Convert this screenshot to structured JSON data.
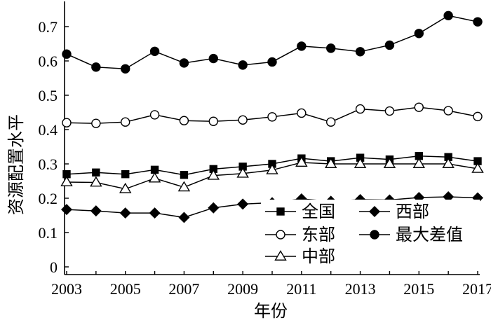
{
  "chart_data": {
    "type": "line",
    "title": "",
    "xlabel": "年份",
    "ylabel": "资源配置水平",
    "xlim": [
      2003,
      2017
    ],
    "ylim": [
      0,
      0.75
    ],
    "x": [
      2003,
      2004,
      2005,
      2006,
      2007,
      2008,
      2009,
      2010,
      2011,
      2012,
      2013,
      2014,
      2015,
      2016,
      2017
    ],
    "x_tick_labels": [
      "2003",
      "2005",
      "2007",
      "2009",
      "2011",
      "2013",
      "2015",
      "2017"
    ],
    "y_tick_labels": [
      "0",
      "0.1",
      "0.2",
      "0.3",
      "0.4",
      "0.5",
      "0.6",
      "0.7"
    ],
    "grid": false,
    "legend_position": "bottom-right",
    "series": [
      {
        "name": "全国",
        "marker": "square",
        "filled": true,
        "values": [
          0.27,
          0.275,
          0.27,
          0.283,
          0.268,
          0.285,
          0.292,
          0.3,
          0.316,
          0.308,
          0.318,
          0.313,
          0.323,
          0.32,
          0.308
        ]
      },
      {
        "name": "东部",
        "marker": "circle",
        "filled": false,
        "values": [
          0.42,
          0.418,
          0.422,
          0.443,
          0.426,
          0.424,
          0.428,
          0.437,
          0.448,
          0.422,
          0.46,
          0.454,
          0.465,
          0.455,
          0.438
        ]
      },
      {
        "name": "中部",
        "marker": "triangle",
        "filled": false,
        "values": [
          0.247,
          0.246,
          0.227,
          0.258,
          0.232,
          0.266,
          0.272,
          0.282,
          0.304,
          0.3,
          0.3,
          0.3,
          0.3,
          0.3,
          0.286
        ]
      },
      {
        "name": "西部",
        "marker": "diamond",
        "filled": true,
        "values": [
          0.167,
          0.163,
          0.157,
          0.157,
          0.144,
          0.172,
          0.183,
          0.187,
          0.198,
          0.191,
          0.196,
          0.195,
          0.202,
          0.204,
          0.201
        ]
      },
      {
        "name": "最大差值",
        "marker": "circle",
        "filled": true,
        "values": [
          0.62,
          0.582,
          0.577,
          0.628,
          0.594,
          0.607,
          0.588,
          0.597,
          0.643,
          0.637,
          0.627,
          0.646,
          0.68,
          0.732,
          0.714
        ]
      }
    ],
    "legend_layout": [
      [
        "全国",
        "西部"
      ],
      [
        "东部",
        "最大差值"
      ],
      [
        "中部"
      ]
    ]
  }
}
